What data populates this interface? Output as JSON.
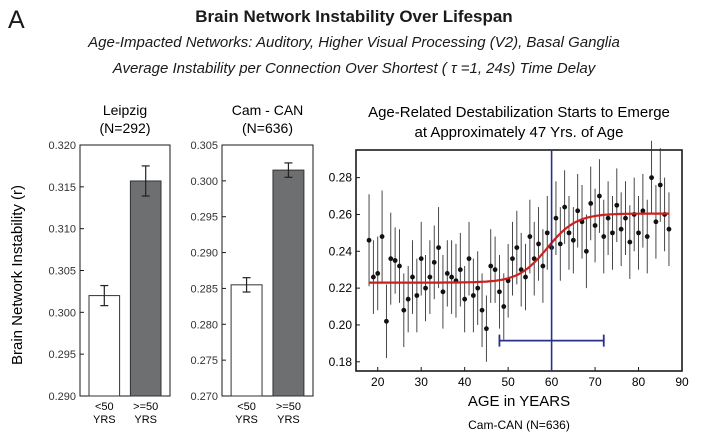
{
  "figure": {
    "panel_letter": "A",
    "title": "Brain Network Instability Over Lifespan",
    "subtitle_1": "Age-Impacted Networks:  Auditory, Higher Visual Processing (V2), Basal Ganglia",
    "subtitle_2": "Average Instability per Connection Over Shortest ( τ =1, 24s) Time Delay",
    "shared_ylabel": "Brain Network Instability (r)"
  },
  "chart_data": [
    {
      "type": "bar",
      "title_line1": "Leipzig",
      "title_line2": "(N=292)",
      "categories": [
        [
          "<50",
          "YRS"
        ],
        [
          ">=50",
          "YRS"
        ]
      ],
      "values": [
        0.302,
        0.3157
      ],
      "errors": [
        0.0012,
        0.0018
      ],
      "colors": [
        "#ffffff",
        "#6d6f70"
      ],
      "ylim": [
        0.29,
        0.32
      ],
      "yticks": [
        "0.290",
        "0.295",
        "0.300",
        "0.305",
        "0.310",
        "0.315",
        "0.320"
      ],
      "ylabel": "Brain Network Instability (r)"
    },
    {
      "type": "bar",
      "title_line1": "Cam - CAN",
      "title_line2": "(N=636)",
      "categories": [
        [
          "<50",
          "YRS"
        ],
        [
          ">=50",
          "YRS"
        ]
      ],
      "values": [
        0.2855,
        0.3015
      ],
      "errors": [
        0.001,
        0.001
      ],
      "colors": [
        "#ffffff",
        "#6d6f70"
      ],
      "ylim": [
        0.27,
        0.305
      ],
      "yticks": [
        "0.270",
        "0.275",
        "0.280",
        "0.285",
        "0.290",
        "0.295",
        "0.300",
        "0.305"
      ]
    },
    {
      "type": "scatter",
      "title_line1": "Age-Related Destabilization Starts to Emerge",
      "title_line2": "at Approximately 47 Yrs. of Age",
      "xlabel": "AGE in YEARS",
      "footnote": "Cam-CAN (N=636)",
      "xlim": [
        15,
        90
      ],
      "ylim": [
        0.175,
        0.295
      ],
      "xticks": [
        20,
        30,
        40,
        50,
        60,
        70,
        80,
        90
      ],
      "yticks": [
        0.18,
        0.2,
        0.22,
        0.24,
        0.26,
        0.28
      ],
      "ytick_labels": [
        "0.18",
        "0.20",
        "0.22",
        "0.24",
        "0.26",
        "0.28"
      ],
      "vline_x": 60,
      "interval": [
        48,
        72
      ],
      "interval_y": 0.1915,
      "fit": {
        "type": "logistic",
        "lower": 0.223,
        "upper": 0.2605,
        "midpoint": 59,
        "slope": 0.3,
        "x_range": [
          18,
          87
        ],
        "color": "#cc1f1f"
      },
      "points": [
        {
          "x": 18,
          "y": 0.246,
          "e": 0.025
        },
        {
          "x": 19,
          "y": 0.226,
          "e": 0.02
        },
        {
          "x": 20,
          "y": 0.228,
          "e": 0.02
        },
        {
          "x": 21,
          "y": 0.248,
          "e": 0.025
        },
        {
          "x": 22,
          "y": 0.202,
          "e": 0.02
        },
        {
          "x": 23,
          "y": 0.236,
          "e": 0.025
        },
        {
          "x": 24,
          "y": 0.235,
          "e": 0.018
        },
        {
          "x": 25,
          "y": 0.232,
          "e": 0.02
        },
        {
          "x": 26,
          "y": 0.208,
          "e": 0.02
        },
        {
          "x": 27,
          "y": 0.214,
          "e": 0.018
        },
        {
          "x": 28,
          "y": 0.226,
          "e": 0.02
        },
        {
          "x": 29,
          "y": 0.216,
          "e": 0.02
        },
        {
          "x": 30,
          "y": 0.236,
          "e": 0.02
        },
        {
          "x": 31,
          "y": 0.22,
          "e": 0.018
        },
        {
          "x": 32,
          "y": 0.226,
          "e": 0.02
        },
        {
          "x": 33,
          "y": 0.234,
          "e": 0.02
        },
        {
          "x": 34,
          "y": 0.242,
          "e": 0.022
        },
        {
          "x": 35,
          "y": 0.218,
          "e": 0.02
        },
        {
          "x": 36,
          "y": 0.228,
          "e": 0.018
        },
        {
          "x": 37,
          "y": 0.226,
          "e": 0.02
        },
        {
          "x": 38,
          "y": 0.224,
          "e": 0.02
        },
        {
          "x": 39,
          "y": 0.23,
          "e": 0.02
        },
        {
          "x": 40,
          "y": 0.214,
          "e": 0.018
        },
        {
          "x": 41,
          "y": 0.236,
          "e": 0.02
        },
        {
          "x": 42,
          "y": 0.216,
          "e": 0.02
        },
        {
          "x": 43,
          "y": 0.22,
          "e": 0.02
        },
        {
          "x": 44,
          "y": 0.208,
          "e": 0.02
        },
        {
          "x": 45,
          "y": 0.198,
          "e": 0.018
        },
        {
          "x": 46,
          "y": 0.232,
          "e": 0.02
        },
        {
          "x": 47,
          "y": 0.23,
          "e": 0.018
        },
        {
          "x": 48,
          "y": 0.218,
          "e": 0.02
        },
        {
          "x": 49,
          "y": 0.21,
          "e": 0.018
        },
        {
          "x": 50,
          "y": 0.224,
          "e": 0.02
        },
        {
          "x": 51,
          "y": 0.236,
          "e": 0.02
        },
        {
          "x": 52,
          "y": 0.242,
          "e": 0.02
        },
        {
          "x": 53,
          "y": 0.23,
          "e": 0.02
        },
        {
          "x": 54,
          "y": 0.226,
          "e": 0.018
        },
        {
          "x": 55,
          "y": 0.248,
          "e": 0.02
        },
        {
          "x": 56,
          "y": 0.236,
          "e": 0.02
        },
        {
          "x": 57,
          "y": 0.244,
          "e": 0.02
        },
        {
          "x": 58,
          "y": 0.232,
          "e": 0.02
        },
        {
          "x": 59,
          "y": 0.25,
          "e": 0.02
        },
        {
          "x": 60,
          "y": 0.242,
          "e": 0.02
        },
        {
          "x": 61,
          "y": 0.258,
          "e": 0.02
        },
        {
          "x": 62,
          "y": 0.244,
          "e": 0.02
        },
        {
          "x": 63,
          "y": 0.264,
          "e": 0.02
        },
        {
          "x": 64,
          "y": 0.25,
          "e": 0.02
        },
        {
          "x": 65,
          "y": 0.246,
          "e": 0.018
        },
        {
          "x": 66,
          "y": 0.262,
          "e": 0.02
        },
        {
          "x": 67,
          "y": 0.256,
          "e": 0.02
        },
        {
          "x": 68,
          "y": 0.24,
          "e": 0.02
        },
        {
          "x": 69,
          "y": 0.266,
          "e": 0.02
        },
        {
          "x": 70,
          "y": 0.254,
          "e": 0.02
        },
        {
          "x": 71,
          "y": 0.27,
          "e": 0.02
        },
        {
          "x": 72,
          "y": 0.248,
          "e": 0.02
        },
        {
          "x": 73,
          "y": 0.258,
          "e": 0.02
        },
        {
          "x": 74,
          "y": 0.25,
          "e": 0.02
        },
        {
          "x": 75,
          "y": 0.265,
          "e": 0.02
        },
        {
          "x": 76,
          "y": 0.252,
          "e": 0.02
        },
        {
          "x": 77,
          "y": 0.258,
          "e": 0.02
        },
        {
          "x": 78,
          "y": 0.245,
          "e": 0.02
        },
        {
          "x": 79,
          "y": 0.26,
          "e": 0.02
        },
        {
          "x": 80,
          "y": 0.25,
          "e": 0.02
        },
        {
          "x": 81,
          "y": 0.262,
          "e": 0.02
        },
        {
          "x": 82,
          "y": 0.248,
          "e": 0.02
        },
        {
          "x": 83,
          "y": 0.28,
          "e": 0.02
        },
        {
          "x": 84,
          "y": 0.256,
          "e": 0.02
        },
        {
          "x": 85,
          "y": 0.276,
          "e": 0.02
        },
        {
          "x": 86,
          "y": 0.26,
          "e": 0.02
        },
        {
          "x": 87,
          "y": 0.252,
          "e": 0.02
        }
      ]
    }
  ]
}
